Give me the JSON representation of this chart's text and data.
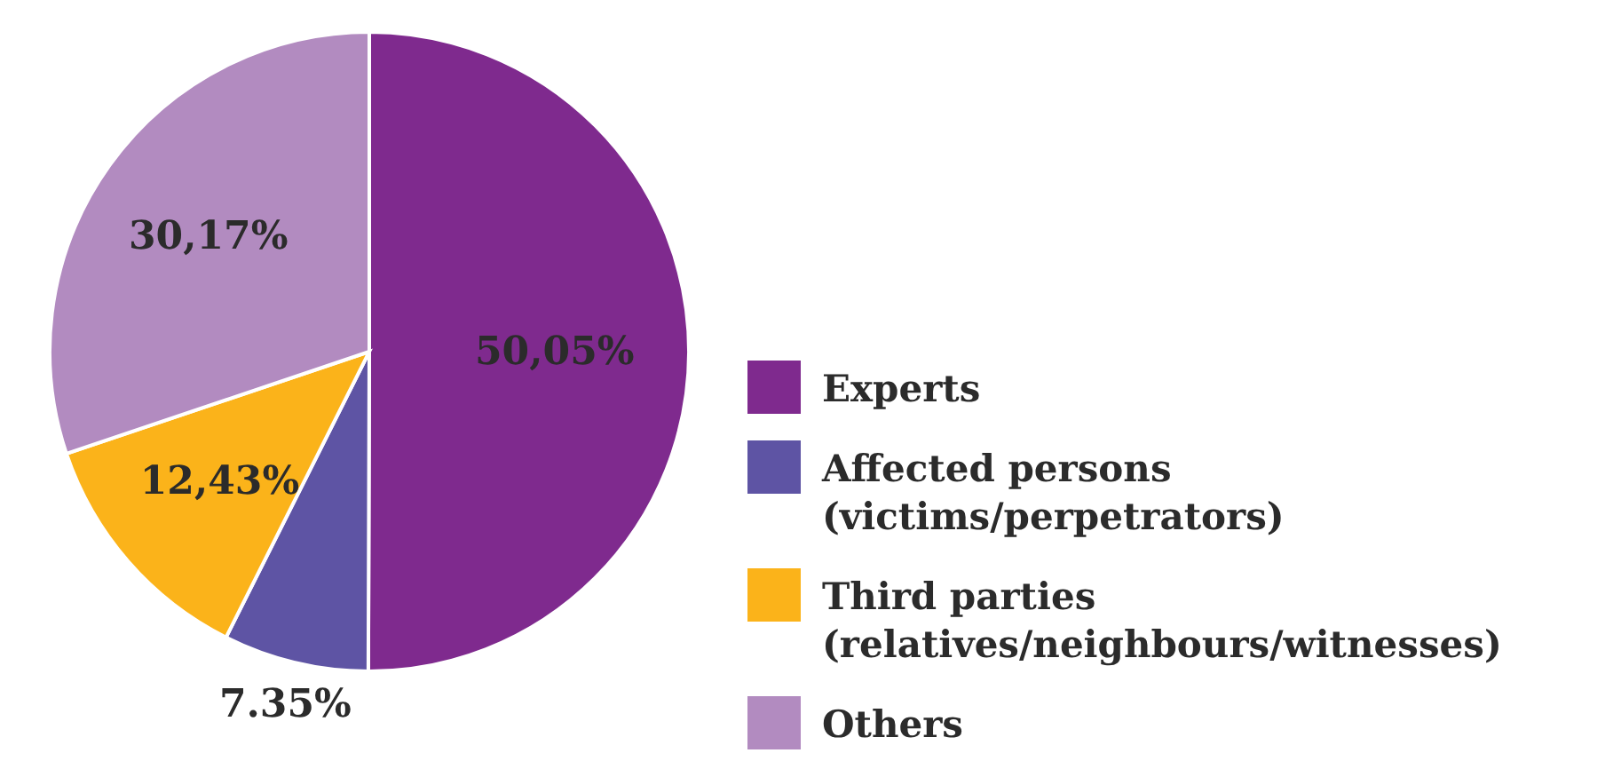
{
  "chart_data": {
    "type": "pie",
    "categories": [
      "Experts",
      "Affected persons (victims/perpetrators)",
      "Third parties (relatives/neighbours/witnesses)",
      "Others"
    ],
    "values": [
      50.05,
      7.35,
      12.43,
      30.17
    ],
    "colors": [
      "#7f2a8e",
      "#5e54a4",
      "#fbb31a",
      "#b28bc0"
    ],
    "value_labels": [
      "50,05%",
      "7.35%",
      "12,43%",
      "30,17%"
    ],
    "legend": "right"
  }
}
